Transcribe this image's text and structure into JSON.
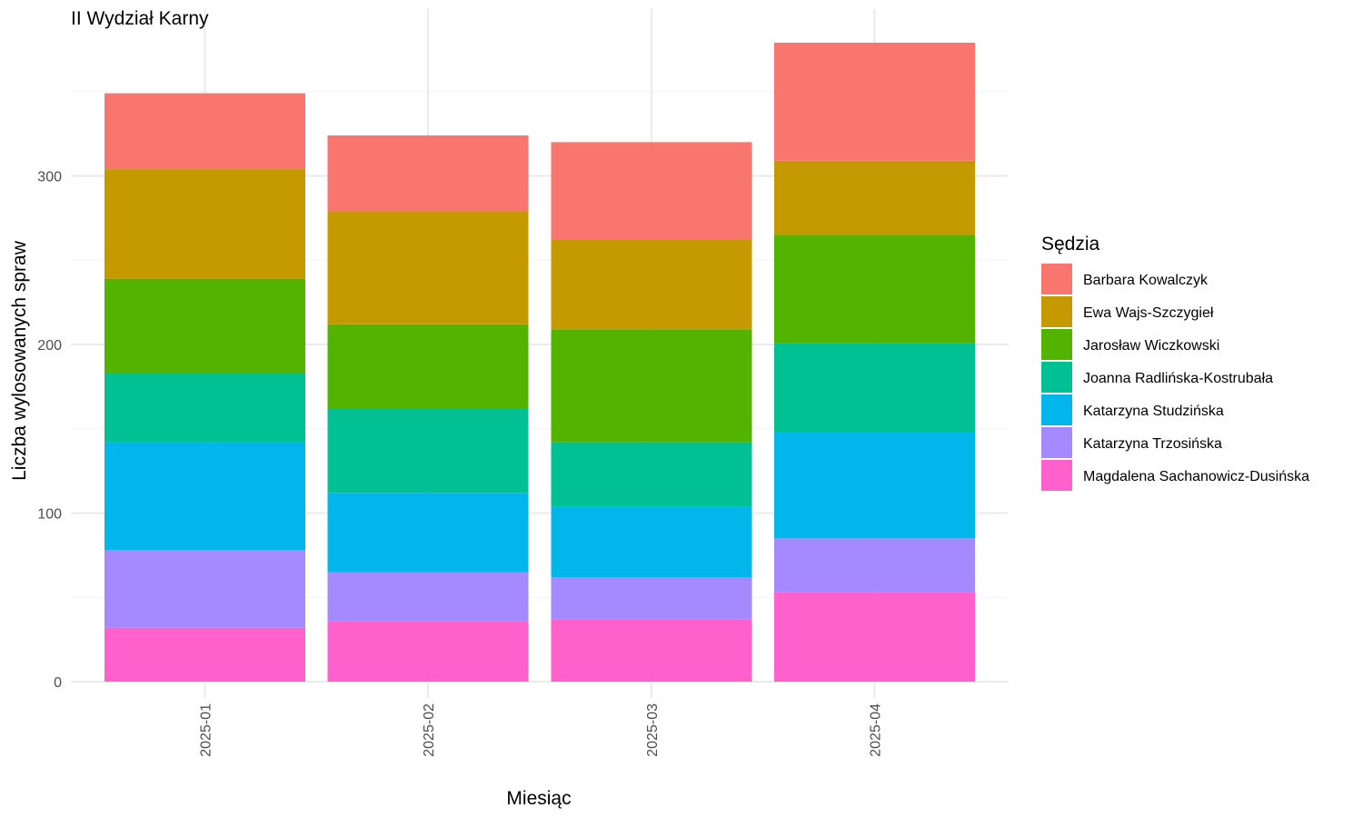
{
  "chart_data": {
    "type": "bar",
    "stacked": true,
    "title": "II Wydział Karny",
    "xlabel": "Miesiąc",
    "ylabel": "Liczba wylosowanych spraw",
    "categories": [
      "2025-01",
      "2025-02",
      "2025-03",
      "2025-04"
    ],
    "ylim": [
      0,
      380
    ],
    "yticks": [
      0,
      100,
      200,
      300
    ],
    "grid": true,
    "legend": {
      "title": "Sędzia",
      "position": "right"
    },
    "series": [
      {
        "name": "Magdalena Sachanowicz-Dusińska",
        "color": "#FF61CC",
        "values": [
          32,
          36,
          37,
          53
        ]
      },
      {
        "name": "Katarzyna Trzosińska",
        "color": "#A58AFF",
        "values": [
          46,
          29,
          25,
          32
        ]
      },
      {
        "name": "Katarzyna Studzińska",
        "color": "#00B6EB",
        "values": [
          64,
          47,
          42,
          63
        ]
      },
      {
        "name": "Joanna Radlińska-Kostrubała",
        "color": "#00C094",
        "values": [
          41,
          50,
          38,
          53
        ]
      },
      {
        "name": "Jarosław Wiczkowski",
        "color": "#53B400",
        "values": [
          56,
          50,
          67,
          64
        ]
      },
      {
        "name": "Ewa Wajs-Szczygieł",
        "color": "#C49A00",
        "values": [
          65,
          67,
          53,
          44
        ]
      },
      {
        "name": "Barbara Kowalczyk",
        "color": "#F8766D",
        "values": [
          45,
          45,
          58,
          70
        ]
      }
    ]
  }
}
